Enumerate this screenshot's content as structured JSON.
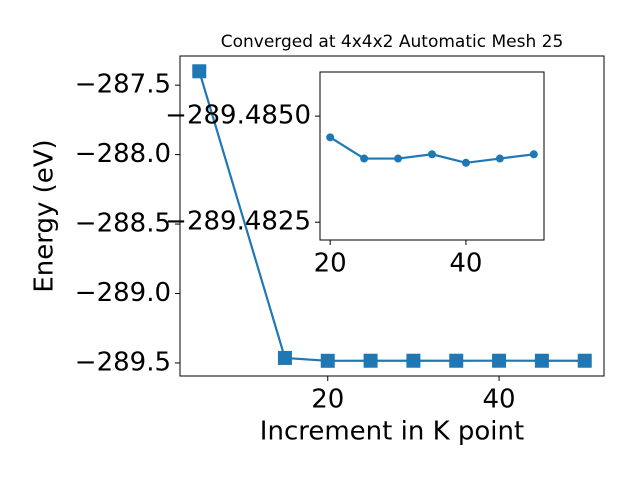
{
  "chart_data": [
    {
      "type": "line",
      "title": "Converged at 4x4x2 Automatic Mesh 25",
      "x_label": "Increment in K point",
      "y_label": "Energy (eV)",
      "x": [
        5,
        15,
        20,
        25,
        30,
        35,
        40,
        45,
        50
      ],
      "series": [
        {
          "color": "#1f77b4",
          "marker": "square",
          "values": [
            -287.4,
            -289.464,
            -289.4845,
            -289.484,
            -289.484,
            -289.4841,
            -289.4839,
            -289.484,
            -289.4841
          ]
        }
      ],
      "xlim": [
        2.75,
        52.25
      ],
      "xticks": [
        20,
        40
      ],
      "ylim": [
        -289.594,
        -287.29
      ],
      "yticks": [
        {
          "value": -289.5,
          "label": "−289.5"
        },
        {
          "value": -289.0,
          "label": "−289.0"
        },
        {
          "value": -288.5,
          "label": "−288.5"
        },
        {
          "value": -288.0,
          "label": "−288.0"
        },
        {
          "value": -287.5,
          "label": "−287.5"
        }
      ]
    },
    {
      "type": "line",
      "x": [
        20,
        25,
        30,
        35,
        40,
        45,
        50
      ],
      "series": [
        {
          "color": "#1f77b4",
          "marker": "circle",
          "values": [
            -289.4845,
            -289.484,
            -289.484,
            -289.4841,
            -289.4839,
            -289.484,
            -289.4841
          ]
        }
      ],
      "xlim": [
        18.5,
        51.5
      ],
      "xticks": [
        20,
        40
      ],
      "ylim": [
        -289.48208,
        -289.48604
      ],
      "yticks": [
        {
          "value": -289.4825,
          "label": "−289.4825"
        },
        {
          "value": -289.485,
          "label": "−289.4850"
        }
      ]
    }
  ]
}
